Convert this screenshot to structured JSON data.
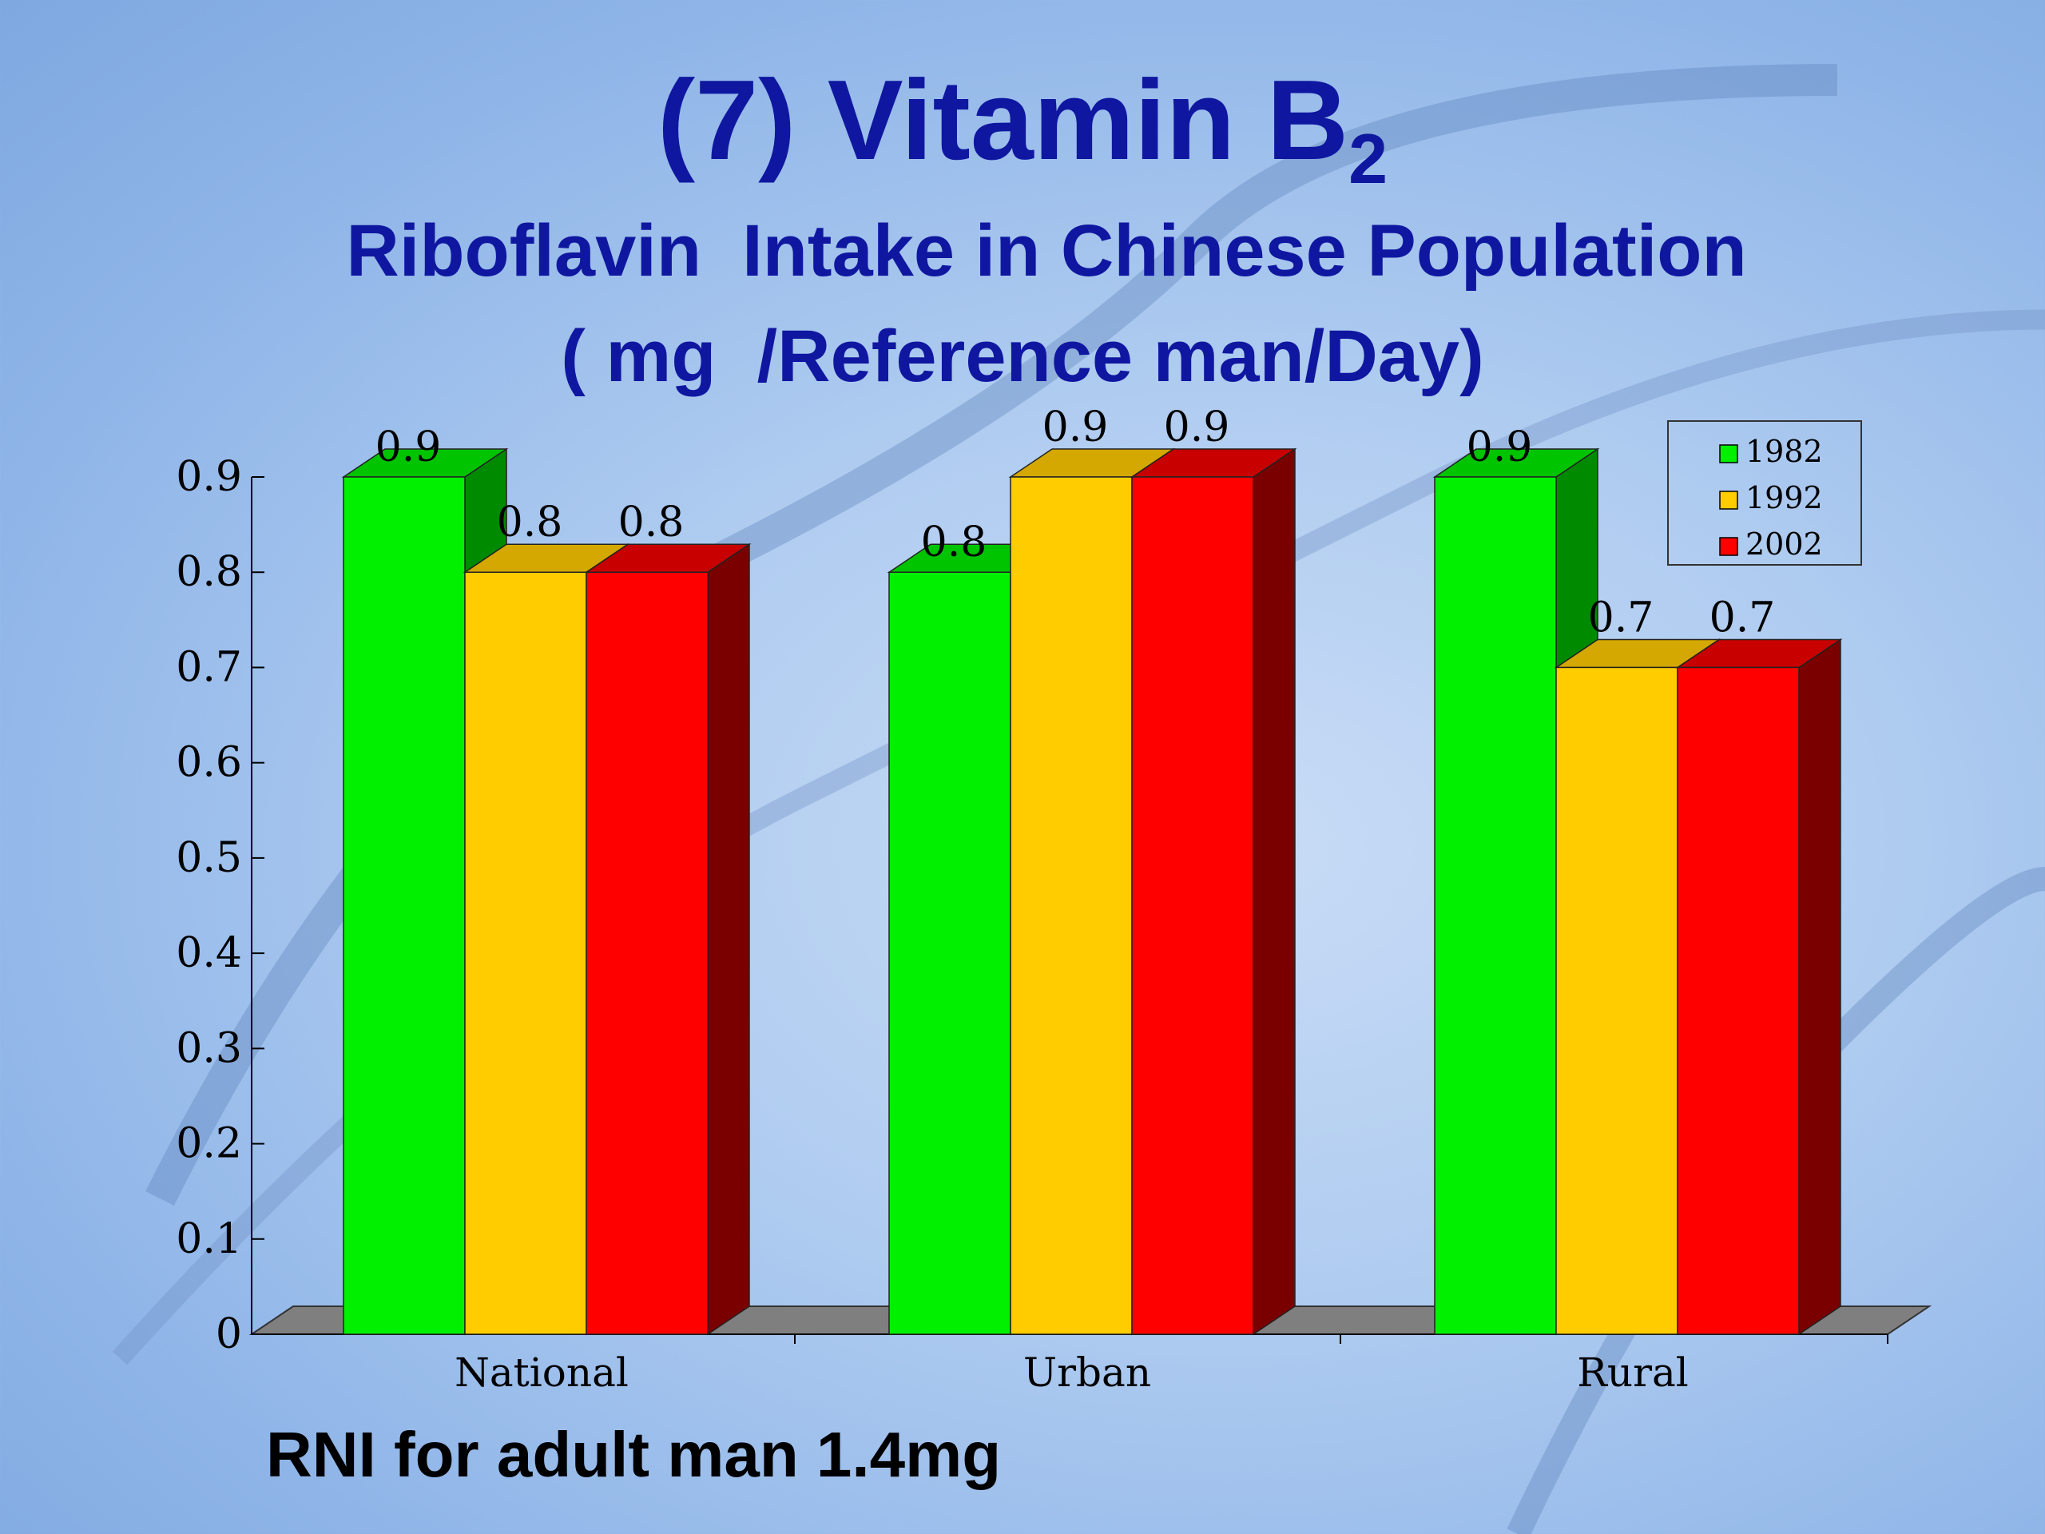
{
  "slide": {
    "title_main": "(7) Vitamin B",
    "title_sub": "2",
    "subtitle": "Riboflavin  Intake in Chinese Population",
    "units": "( mg  /Reference man/Day)",
    "footnote": "RNI for adult man 1.4mg"
  },
  "chart_data": {
    "type": "bar",
    "categories": [
      "National",
      "Urban",
      "Rural"
    ],
    "series": [
      {
        "name": "1982",
        "values": [
          0.9,
          0.8,
          0.9
        ],
        "color": "#00f000",
        "side_color": "#008a00",
        "top_color": "#00c400"
      },
      {
        "name": "1992",
        "values": [
          0.8,
          0.9,
          0.7
        ],
        "color": "#ffcc00",
        "side_color": "#b38e00",
        "top_color": "#d4a800"
      },
      {
        "name": "2002",
        "values": [
          0.8,
          0.9,
          0.7
        ],
        "color": "#ff0000",
        "side_color": "#7a0000",
        "top_color": "#c80000"
      }
    ],
    "data_labels": [
      [
        "0.9",
        "0.8",
        "0.9"
      ],
      [
        "0.8",
        "0.9",
        "0.7"
      ],
      [
        "0.8",
        "0.9",
        "0.7"
      ]
    ],
    "ylim": [
      0,
      0.9
    ],
    "yticks": [
      "0",
      "0.1",
      "0.2",
      "0.3",
      "0.4",
      "0.5",
      "0.6",
      "0.7",
      "0.8",
      "0.9"
    ],
    "legend_position": "top-right",
    "grid": false,
    "style": "3d"
  }
}
